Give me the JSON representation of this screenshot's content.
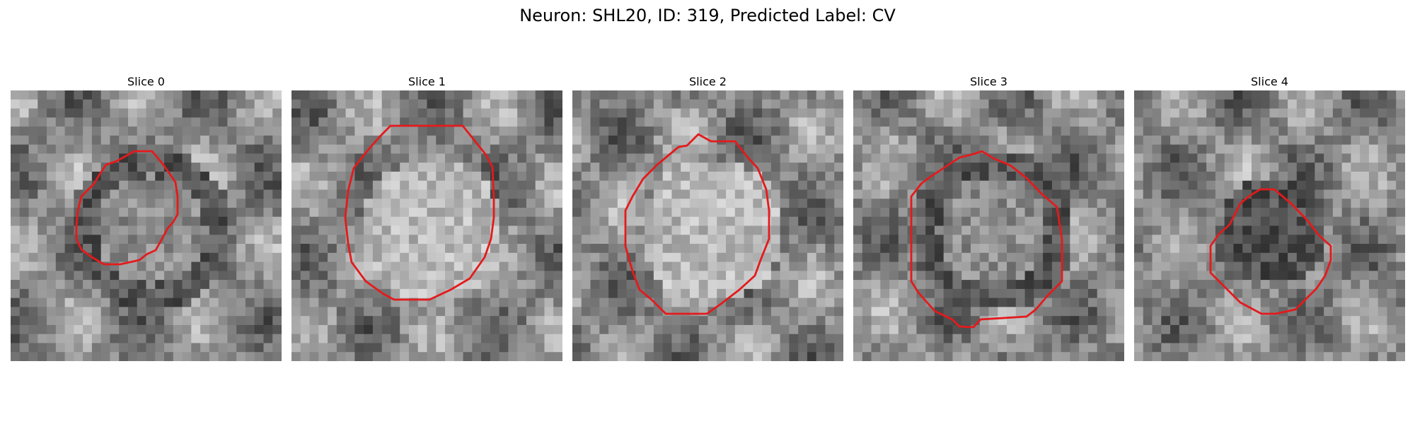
{
  "figure": {
    "title": "Neuron: SHL20, ID: 319, Predicted Label: CV",
    "contour_color": "#e41a1c",
    "colormap": "gray",
    "panels": [
      {
        "label": "Slice 0",
        "seed": 11,
        "mode": "ring"
      },
      {
        "label": "Slice 1",
        "seed": 23,
        "mode": "bright"
      },
      {
        "label": "Slice 2",
        "seed": 37,
        "mode": "bright"
      },
      {
        "label": "Slice 3",
        "seed": 41,
        "mode": "ring"
      },
      {
        "label": "Slice 4",
        "seed": 53,
        "mode": "dark"
      }
    ]
  }
}
